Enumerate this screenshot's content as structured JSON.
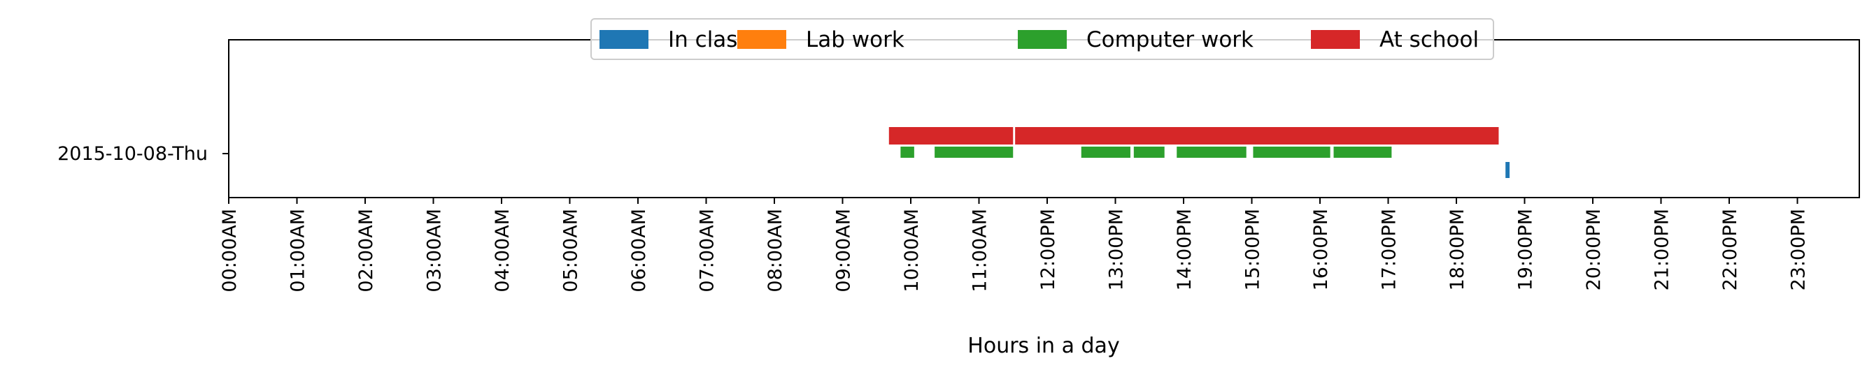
{
  "chart_data": {
    "type": "bar",
    "orientation": "horizontal",
    "title": "",
    "xlabel": "Hours in a day",
    "ylabel": "",
    "xlim": [
      0,
      24
    ],
    "x_tick_values": [
      0,
      1,
      2,
      3,
      4,
      5,
      6,
      7,
      8,
      9,
      10,
      11,
      12,
      13,
      14,
      15,
      16,
      17,
      18,
      19,
      20,
      21,
      22,
      23
    ],
    "x_tick_labels": [
      "00:00AM",
      "01:00AM",
      "02:00AM",
      "03:00AM",
      "04:00AM",
      "05:00AM",
      "06:00AM",
      "07:00AM",
      "08:00AM",
      "09:00AM",
      "10:00AM",
      "11:00AM",
      "12:00PM",
      "13:00PM",
      "14:00PM",
      "15:00PM",
      "16:00PM",
      "17:00PM",
      "18:00PM",
      "19:00PM",
      "20:00PM",
      "21:00PM",
      "22:00PM",
      "23:00PM"
    ],
    "categories": [
      "2015-10-08-Thu"
    ],
    "grid": false,
    "legend_position": "top-center",
    "series": [
      {
        "name": "In class",
        "color": "#1f77b4",
        "intervals": [
          [
            18.72,
            18.78
          ]
        ]
      },
      {
        "name": "Lab work",
        "color": "#ff7f0e",
        "intervals": []
      },
      {
        "name": "Computer work",
        "color": "#2ca02c",
        "intervals": [
          [
            9.85,
            10.05
          ],
          [
            10.35,
            11.5
          ],
          [
            12.5,
            13.22
          ],
          [
            13.27,
            13.72
          ],
          [
            13.9,
            14.92
          ],
          [
            15.02,
            16.15
          ],
          [
            16.2,
            17.05
          ]
        ]
      },
      {
        "name": "At school",
        "color": "#d62728",
        "intervals": [
          [
            9.68,
            11.5
          ],
          [
            11.53,
            18.62
          ]
        ]
      }
    ]
  }
}
